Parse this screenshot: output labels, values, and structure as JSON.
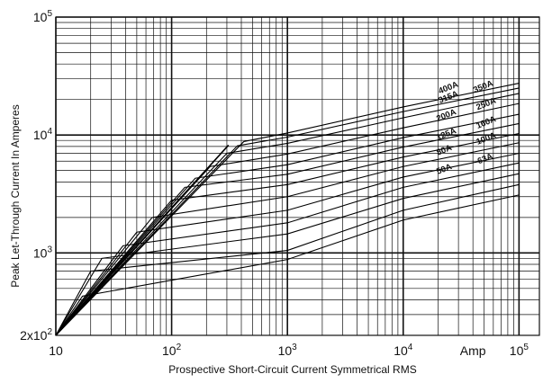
{
  "chart_data": {
    "type": "line",
    "xscale": "log",
    "yscale": "log",
    "xlim": [
      10,
      150000
    ],
    "ylim": [
      200,
      100000
    ],
    "grid": true,
    "xlabel": "Prospective Short-Circuit Current Symmetrical RMS",
    "ylabel": "Peak Let-Through Current In Amperes",
    "x_tick_labels": [
      {
        "value": 10,
        "label": "10"
      },
      {
        "value": 100,
        "label": "10",
        "sup": "2"
      },
      {
        "value": 1000,
        "label": "10",
        "sup": "3"
      },
      {
        "value": 10000,
        "label": "10",
        "sup": "4"
      },
      {
        "value": 100000,
        "label": "10",
        "sup": "5"
      }
    ],
    "x_unit_label": "Amp",
    "y_tick_labels": [
      {
        "value": 200,
        "label": "2x10",
        "sup": "2"
      },
      {
        "value": 1000,
        "label": "10",
        "sup": "3"
      },
      {
        "value": 10000,
        "label": "10",
        "sup": "4"
      },
      {
        "value": 100000,
        "label": "10",
        "sup": "5"
      }
    ],
    "cutoff_asymptote": {
      "x": [
        10,
        310
      ],
      "y": [
        200,
        8200
      ]
    },
    "series": [
      {
        "name": "400A",
        "x": [
          10,
          420,
          1000,
          10000,
          100000
        ],
        "y": [
          200,
          8800,
          10400,
          17300,
          27500
        ]
      },
      {
        "name": "350A",
        "x": [
          10,
          370,
          1000,
          10000,
          100000
        ],
        "y": [
          200,
          8100,
          9600,
          15800,
          25000
        ]
      },
      {
        "name": "315A",
        "x": [
          10,
          300,
          1000,
          10000,
          100000
        ],
        "y": [
          200,
          7000,
          8500,
          14000,
          22500
        ]
      },
      {
        "name": "250A",
        "x": [
          10,
          215,
          1000,
          10000,
          100000
        ],
        "y": [
          200,
          5400,
          6900,
          11500,
          18500
        ]
      },
      {
        "name": "200A",
        "x": [
          10,
          160,
          1000,
          10000,
          100000
        ],
        "y": [
          200,
          4300,
          5600,
          9500,
          15000
        ]
      },
      {
        "name": "160A",
        "x": [
          10,
          130,
          1000,
          10000,
          100000
        ],
        "y": [
          200,
          3600,
          4650,
          7900,
          12500
        ]
      },
      {
        "name": "125A",
        "x": [
          10,
          100,
          1000,
          10000,
          100000
        ],
        "y": [
          200,
          2800,
          3800,
          6500,
          10300
        ]
      },
      {
        "name": "100A",
        "x": [
          10,
          68,
          1000,
          10000,
          100000
        ],
        "y": [
          200,
          2000,
          3000,
          5400,
          8600
        ]
      },
      {
        "name": "80A",
        "x": [
          10,
          50,
          1000,
          10000,
          100000
        ],
        "y": [
          200,
          1500,
          2300,
          4400,
          7000
        ]
      },
      {
        "name": "63A",
        "x": [
          10,
          38,
          1000,
          10000,
          100000
        ],
        "y": [
          200,
          1150,
          1800,
          3600,
          5800
        ]
      },
      {
        "name": "50A",
        "x": [
          10,
          25,
          1000,
          10000,
          100000
        ],
        "y": [
          200,
          900,
          1450,
          2900,
          4700
        ]
      },
      {
        "x": [
          10,
          20,
          1000,
          10000,
          100000
        ],
        "y": [
          200,
          700,
          1050,
          2300,
          3800
        ]
      },
      {
        "x": [
          10,
          17,
          1000,
          10000,
          100000
        ],
        "y": [
          200,
          430,
          880,
          1900,
          3100
        ]
      }
    ],
    "series_labels": [
      {
        "text": "400A",
        "x": 25000,
        "y": 24000
      },
      {
        "text": "350A",
        "x": 50000,
        "y": 24500
      },
      {
        "text": "315A",
        "x": 25000,
        "y": 20000
      },
      {
        "text": "250A",
        "x": 53000,
        "y": 17500
      },
      {
        "text": "200A",
        "x": 24000,
        "y": 14000
      },
      {
        "text": "160A",
        "x": 53000,
        "y": 12200
      },
      {
        "text": "125A",
        "x": 24000,
        "y": 9700
      },
      {
        "text": "100A",
        "x": 53000,
        "y": 8900
      },
      {
        "text": "80A",
        "x": 23000,
        "y": 7100
      },
      {
        "text": "63A",
        "x": 52000,
        "y": 6000
      },
      {
        "text": "50A",
        "x": 23000,
        "y": 4900
      }
    ]
  }
}
